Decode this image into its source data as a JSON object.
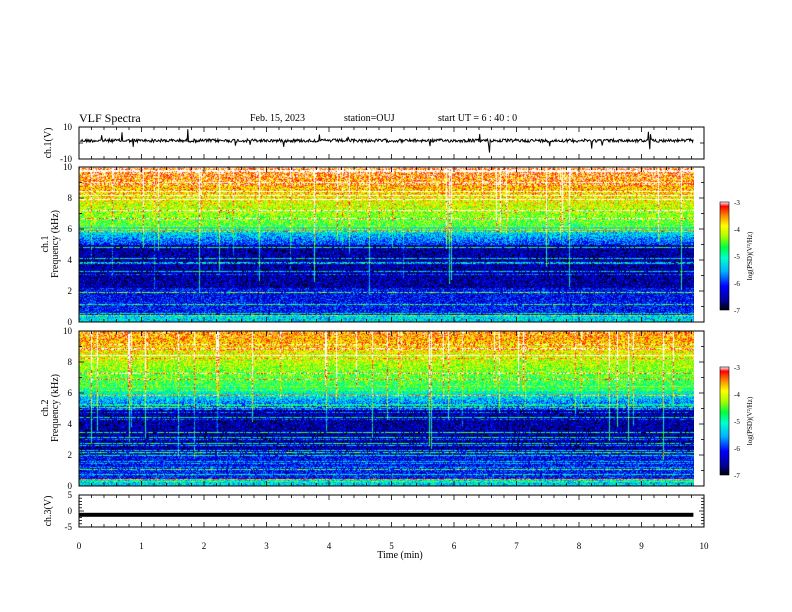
{
  "header": {
    "title": "VLF Spectra",
    "date": "Feb. 15, 2023",
    "station": "station=OUJ",
    "start": "start  UT =   6 : 40 : 0"
  },
  "chart_data": [
    {
      "type": "line",
      "panel": "ch1-waveform",
      "ylabel": "ch.1(V)",
      "ylim": [
        -10,
        10
      ],
      "yticks": [
        "10",
        "-10"
      ],
      "xlim": [
        0,
        10
      ],
      "series_description_level_v": 1.5
    },
    {
      "type": "heatmap",
      "panel": "ch1-spectrogram",
      "ylabel_line1": "ch.1",
      "ylabel_line2": "Frequency (kHz)",
      "ylim": [
        0,
        10
      ],
      "yticks": [
        "0",
        "2",
        "4",
        "6",
        "8",
        "10"
      ],
      "xlim": [
        0,
        10
      ],
      "colorbar": {
        "label": "log(PSD)(V²/Hz)",
        "ticks": [
          "-3",
          "-4",
          "-5",
          "-6",
          "-7"
        ],
        "range": [
          -7,
          -3
        ]
      }
    },
    {
      "type": "heatmap",
      "panel": "ch2-spectrogram",
      "ylabel_line1": "ch.2",
      "ylabel_line2": "Frequency (kHz)",
      "ylim": [
        0,
        10
      ],
      "yticks": [
        "0",
        "2",
        "4",
        "6",
        "8",
        "10"
      ],
      "xlim": [
        0,
        10
      ],
      "colorbar": {
        "label": "log(PSD)(V²/Hz)",
        "ticks": [
          "-3",
          "-4",
          "-5",
          "-6",
          "-7"
        ],
        "range": [
          -7,
          -3
        ]
      }
    },
    {
      "type": "line",
      "panel": "ch3-waveform",
      "ylabel": "ch.3(V)",
      "ylim": [
        -5,
        5
      ],
      "yticks": [
        "5",
        "0",
        "-5"
      ],
      "xlim": [
        0,
        10
      ],
      "xlabel": "Time (min)",
      "xticks": [
        "0",
        "1",
        "2",
        "3",
        "4",
        "5",
        "6",
        "7",
        "8",
        "9",
        "10"
      ],
      "data_end_min": 9.83,
      "level_v": -1.2
    }
  ]
}
